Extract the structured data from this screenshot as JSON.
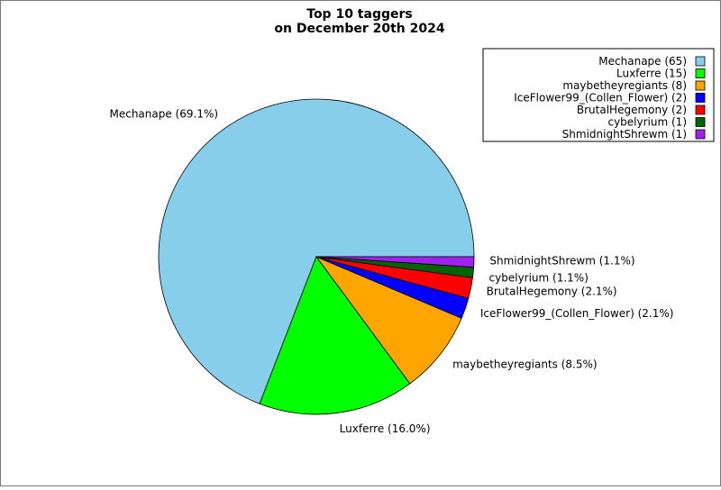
{
  "chart_data": {
    "type": "pie",
    "title": [
      "Top 10 taggers",
      "on December 20th 2024"
    ],
    "legend_position": "top-right",
    "slices": [
      {
        "name": "Mechanape",
        "count": 65,
        "percent": 69.1,
        "color": "#87CEEB",
        "label": "Mechanape (69.1%)",
        "legend": "Mechanape (65)"
      },
      {
        "name": "Luxferre",
        "count": 15,
        "percent": 16.0,
        "color": "#00FF00",
        "label": "Luxferre (16.0%)",
        "legend": "Luxferre (15)"
      },
      {
        "name": "maybetheyregiants",
        "count": 8,
        "percent": 8.5,
        "color": "#FFA500",
        "label": "maybetheyregiants (8.5%)",
        "legend": "maybetheyregiants (8)"
      },
      {
        "name": "IceFlower99_(Collen_Flower)",
        "count": 2,
        "percent": 2.1,
        "color": "#0000FF",
        "label": "IceFlower99_(Collen_Flower) (2.1%)",
        "legend": "IceFlower99_(Collen_Flower) (2)"
      },
      {
        "name": "BrutalHegemony",
        "count": 2,
        "percent": 2.1,
        "color": "#FF0000",
        "label": "BrutalHegemony (2.1%)",
        "legend": "BrutalHegemony (2)"
      },
      {
        "name": "cybelyrium",
        "count": 1,
        "percent": 1.1,
        "color": "#006400",
        "label": "cybelyrium (1.1%)",
        "legend": "cybelyrium (1)"
      },
      {
        "name": "ShmidnightShrewm",
        "count": 1,
        "percent": 1.1,
        "color": "#A020F0",
        "label": "ShmidnightShrewm (1.1%)",
        "legend": "ShmidnightShrewm (1)"
      }
    ]
  }
}
